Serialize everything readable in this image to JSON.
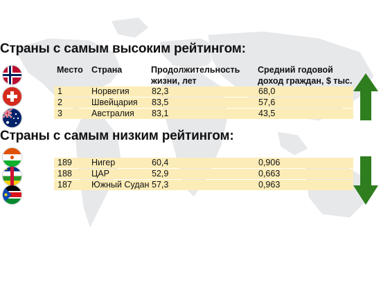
{
  "headings": {
    "top": "Страны с самым высоким рейтингом:",
    "bottom": "Страны с самым низким рейтингом:"
  },
  "columns": {
    "rank": "Место",
    "country": "Страна",
    "life_line1": "Продолжительность",
    "life_line2": "жизни, лет",
    "income_line1": "Средний годовой",
    "income_line2": "доход граждан, $ тыс."
  },
  "top_rows": [
    {
      "rank": "1",
      "country": "Норвегия",
      "life": "82,3",
      "income": "68,0"
    },
    {
      "rank": "2",
      "country": "Швейцария",
      "life": "83,5",
      "income": "57,6"
    },
    {
      "rank": "3",
      "country": "Австралия",
      "life": "83,1",
      "income": "43,5"
    }
  ],
  "bottom_rows": [
    {
      "rank": "189",
      "country": "Нигер",
      "life": "60,4",
      "income": "0,906"
    },
    {
      "rank": "188",
      "country": "ЦАР",
      "life": "52,9",
      "income": "0,663"
    },
    {
      "rank": "187",
      "country": "Южный Судан",
      "life": "57,3",
      "income": "0,963"
    }
  ],
  "flags": {
    "top": [
      "norway-flag-icon",
      "switzerland-flag-icon",
      "australia-flag-icon"
    ],
    "bottom": [
      "niger-flag-icon",
      "car-flag-icon",
      "south-sudan-flag-icon"
    ]
  },
  "colors": {
    "row_highlight": "#fcedb8",
    "arrow_green": "#2e7d1e",
    "map_gray": "#e6e8ea"
  }
}
